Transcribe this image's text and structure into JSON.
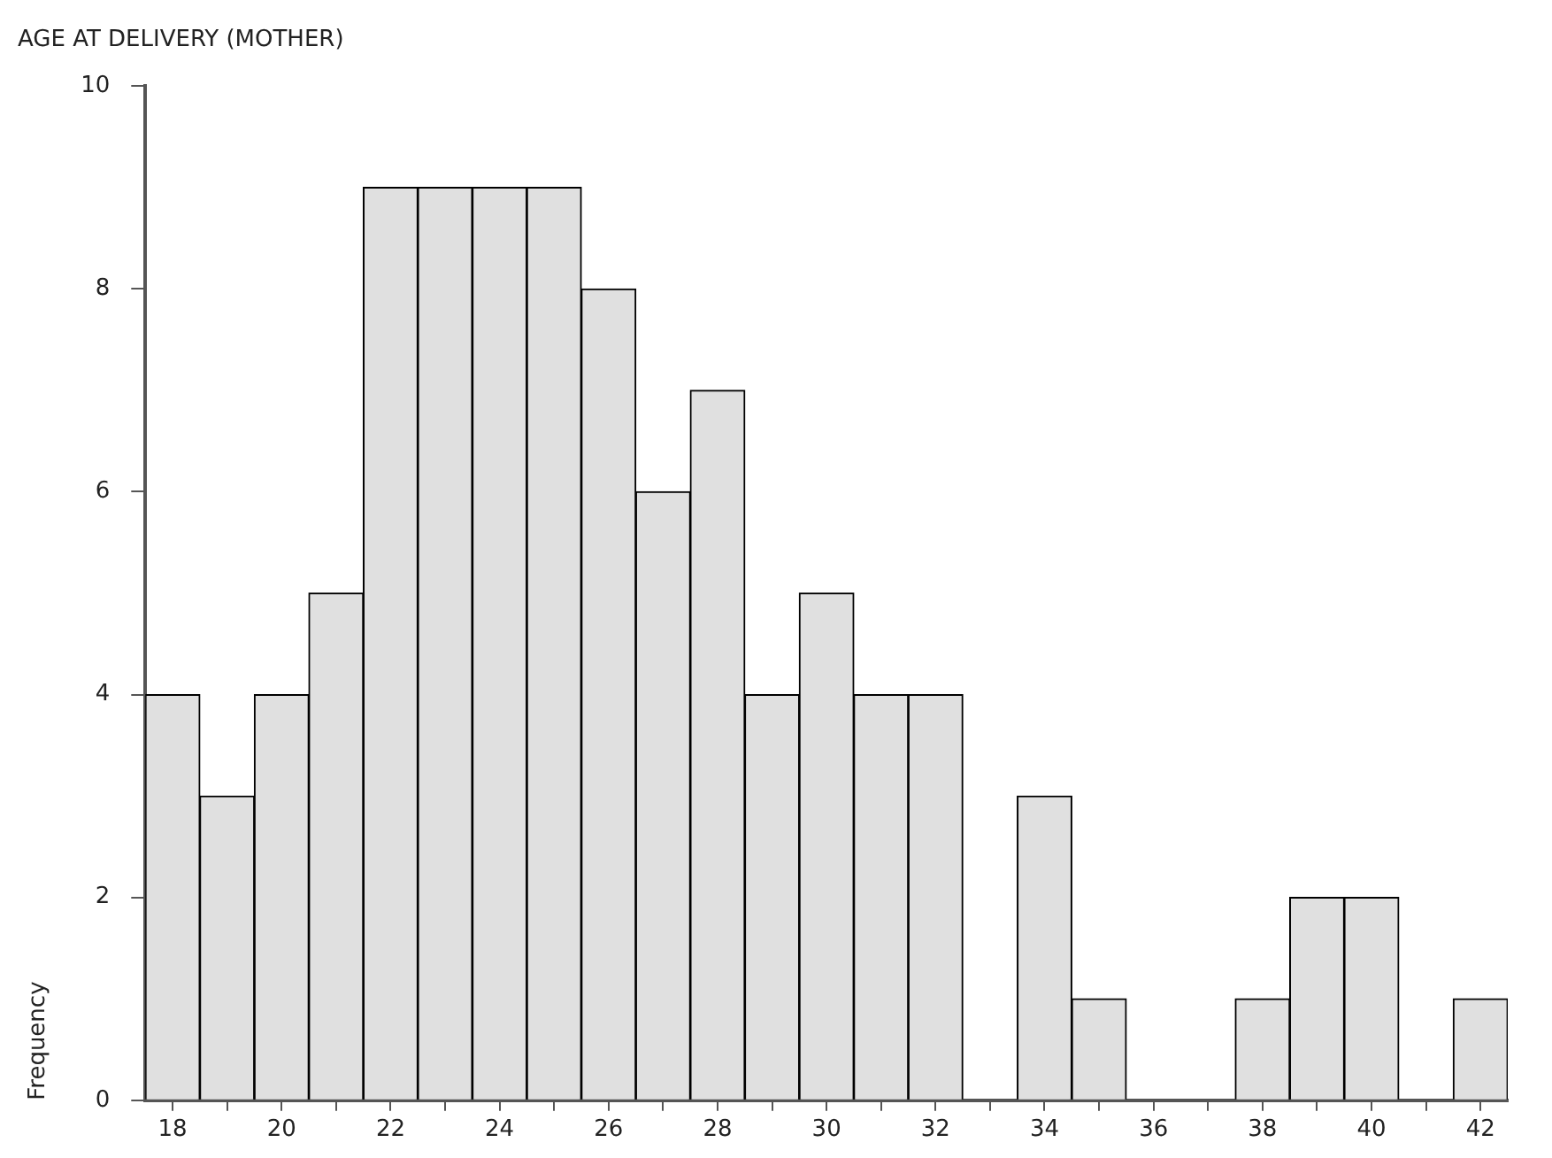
{
  "chart_data": {
    "type": "histogram",
    "title": "AGE AT DELIVERY (MOTHER)",
    "ylabel": "Frequency",
    "bins": [
      17.5,
      18.5,
      19.5,
      20.5,
      21.5,
      22.5,
      23.5,
      24.5,
      25.5,
      26.5,
      27.5,
      28.5,
      29.5,
      30.5,
      31.5,
      32.5,
      33.5,
      34.5,
      35.5,
      36.5,
      37.5,
      38.5,
      39.5,
      40.5,
      41.5,
      42.5
    ],
    "values": [
      4,
      3,
      4,
      5,
      9,
      9,
      9,
      9,
      8,
      6,
      7,
      4,
      5,
      4,
      4,
      0,
      3,
      1,
      0,
      0,
      1,
      2,
      2,
      0,
      1
    ],
    "color": "#e0e0e0",
    "xlim": [
      17.5,
      42.5
    ],
    "xticks": [
      18,
      {
        "value": 19,
        "label": null
      },
      20,
      {
        "value": 21,
        "label": null
      },
      22,
      {
        "value": 23,
        "label": null
      },
      24,
      {
        "value": 25,
        "label": null
      },
      26,
      {
        "value": 27,
        "label": null
      },
      28,
      {
        "value": 29,
        "label": null
      },
      30,
      {
        "value": 31,
        "label": null
      },
      32,
      {
        "value": 33,
        "label": null
      },
      34,
      {
        "value": 35,
        "label": null
      },
      36,
      {
        "value": 37,
        "label": null
      },
      38,
      {
        "value": 39,
        "label": null
      },
      40,
      {
        "value": 41,
        "label": null
      },
      42
    ],
    "ylim": [
      0,
      10
    ],
    "yticks": [
      0,
      2,
      4,
      6,
      8,
      10
    ],
    "grid": false,
    "legend": false
  }
}
